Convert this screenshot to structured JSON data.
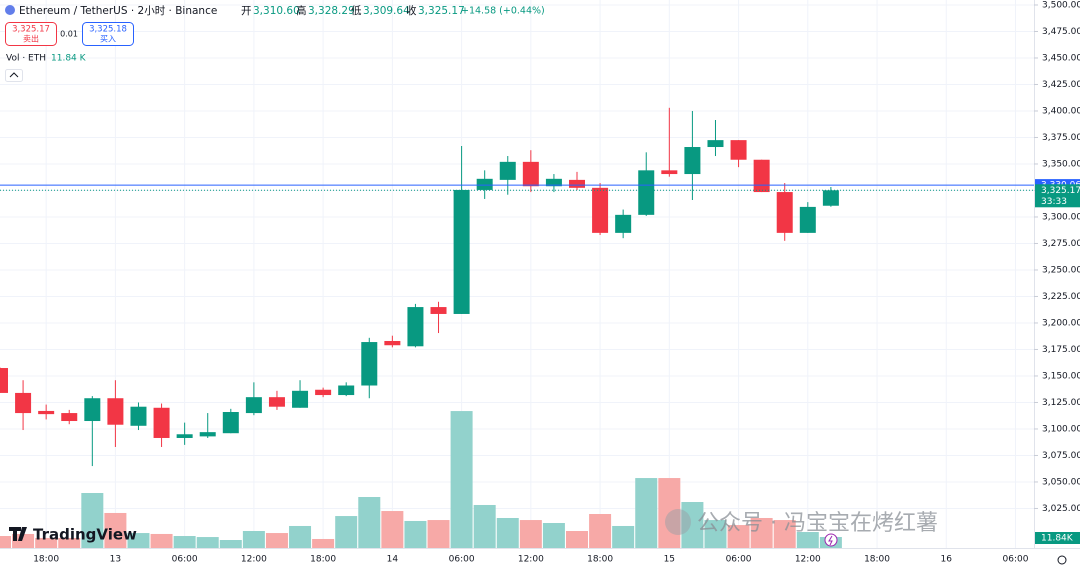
{
  "header": {
    "symbol": "Ethereum / TetherUS · 2小时 · Binance",
    "open_label": "开",
    "open": "3,310.60",
    "high_label": "高",
    "high": "3,328.29",
    "low_label": "低",
    "low": "3,309.64",
    "close_label": "收",
    "close": "3,325.17",
    "change": "+14.58 (+0.44%)",
    "sell_price": "3,325.17",
    "sell_label": "卖出",
    "spread": "0.01",
    "buy_price": "3,325.18",
    "buy_label": "买入",
    "volume_title": "Vol · ETH",
    "volume_value": "11.84 K"
  },
  "watermark": "公众号 · 冯宝宝在烤红薯",
  "logo": "TradingView",
  "chart_data": {
    "type": "candlestick",
    "categories": [
      null,
      null,
      "18:00",
      null,
      null,
      "13",
      null,
      null,
      "06:00",
      null,
      null,
      "12:00",
      null,
      null,
      "18:00",
      null,
      null,
      "14",
      null,
      null,
      "06:00",
      null,
      null,
      "12:00",
      null,
      null,
      "18:00",
      null,
      null,
      "15",
      null,
      null,
      "06:00",
      null,
      null,
      "12:00",
      null,
      null,
      "18:00",
      null,
      null,
      "16",
      null,
      null,
      "06:00"
    ],
    "open": [
      3157.5,
      3134,
      3117,
      3115,
      3107.5,
      3129,
      3103,
      3120,
      3091.5,
      3093,
      3096,
      3115,
      3130,
      3120,
      3137,
      3132,
      3141,
      3183,
      3178,
      3215,
      3208.5,
      3325.5,
      3335,
      3352,
      3329,
      3335,
      3327.5,
      3285,
      3302,
      3344,
      3340.5,
      3366,
      3372.5,
      3354,
      3323.5,
      3285,
      3310.6,
      null,
      null,
      null,
      null,
      null,
      null,
      null,
      null
    ],
    "high": [
      3158,
      3146,
      3123,
      3118,
      3131,
      3146,
      3125,
      3124,
      3106,
      3115,
      3119,
      3144,
      3136,
      3146,
      3139,
      3144,
      3186,
      3188,
      3218,
      3220,
      3367,
      3344,
      3357.5,
      3363,
      3340.5,
      3342.5,
      3332,
      3307,
      3361,
      3403,
      3400,
      3391.5,
      3372.5,
      3354,
      3332,
      3314,
      3328.29,
      null,
      null,
      null,
      null,
      null,
      null,
      null,
      null
    ],
    "low": [
      3134,
      3099,
      3109,
      3104.5,
      3065,
      3083,
      3099,
      3083,
      3085,
      3091.5,
      3096,
      3113,
      3118,
      3120,
      3130,
      3131,
      3129,
      3177,
      3177,
      3190.5,
      3208.5,
      3317,
      3321,
      3323.5,
      3323.5,
      3325.5,
      3283,
      3280,
      3301,
      3338,
      3316,
      3357.5,
      3347,
      3323.5,
      3277.5,
      3285,
      3309.64,
      null,
      null,
      null,
      null,
      null,
      null,
      null,
      null
    ],
    "close": [
      3134,
      3115,
      3114,
      3107.5,
      3129,
      3104,
      3121,
      3091.5,
      3095,
      3097,
      3116,
      3130,
      3121,
      3136,
      3132,
      3141,
      3182,
      3179,
      3215,
      3208.5,
      3325.5,
      3336,
      3352,
      3329,
      3336,
      3327.5,
      3285,
      3302,
      3344,
      3340.5,
      3366,
      3372.5,
      3354,
      3323.5,
      3285,
      3309.5,
      3325.17,
      null,
      null,
      null,
      null,
      null,
      null,
      null,
      null
    ],
    "volume": [
      12.9,
      15.1,
      10.8,
      10.8,
      59.2,
      37.7,
      16.1,
      15.1,
      12.9,
      11.8,
      8.6,
      18.3,
      16.1,
      23.7,
      9.7,
      34.4,
      54.9,
      39.8,
      29.1,
      30.1,
      147.4,
      46.3,
      32.3,
      30.1,
      26.9,
      18.3,
      36.6,
      23.7,
      75.3,
      75.3,
      49.5,
      30.1,
      24.7,
      32.3,
      30.1,
      17.2,
      11.84,
      null,
      null,
      null,
      null,
      null,
      null,
      null,
      null
    ],
    "volume_label": "11.84K",
    "up_color": "#089981",
    "down_color": "#f23645",
    "up_volume_color": "#92d2cc",
    "down_volume_color": "#f7a9a7",
    "ylim": [
      2987.7,
      3504.7
    ],
    "yticks": [
      {
        "value": 3025,
        "label": "3,025.00"
      },
      {
        "value": 3050,
        "label": "3,050.00"
      },
      {
        "value": 3075,
        "label": "3,075.00"
      },
      {
        "value": 3100,
        "label": "3,100.00"
      },
      {
        "value": 3125,
        "label": "3,125.00"
      },
      {
        "value": 3150,
        "label": "3,150.00"
      },
      {
        "value": 3175,
        "label": "3,175.00"
      },
      {
        "value": 3200,
        "label": "3,200.00"
      },
      {
        "value": 3225,
        "label": "3,225.00"
      },
      {
        "value": 3250,
        "label": "3,250.00"
      },
      {
        "value": 3275,
        "label": "3,275.00"
      },
      {
        "value": 3300,
        "label": "3,300.00"
      },
      {
        "value": 3325,
        "label": "3,325.00"
      },
      {
        "value": 3350,
        "label": "3,350.00"
      },
      {
        "value": 3375,
        "label": "3,375.00"
      },
      {
        "value": 3400,
        "label": "3,400.00"
      },
      {
        "value": 3425,
        "label": "3,425.00"
      },
      {
        "value": 3450,
        "label": "3,450.00"
      },
      {
        "value": 3475,
        "label": "3,475.00"
      },
      {
        "value": 3500,
        "label": "3,500.00"
      }
    ],
    "price_line": {
      "value": 3330.06,
      "label": "3,330.06",
      "color": "#2962ff"
    },
    "last_price": {
      "value": 3325.17,
      "label": "3,325.17",
      "countdown": "33:33",
      "color": "#089981"
    }
  }
}
